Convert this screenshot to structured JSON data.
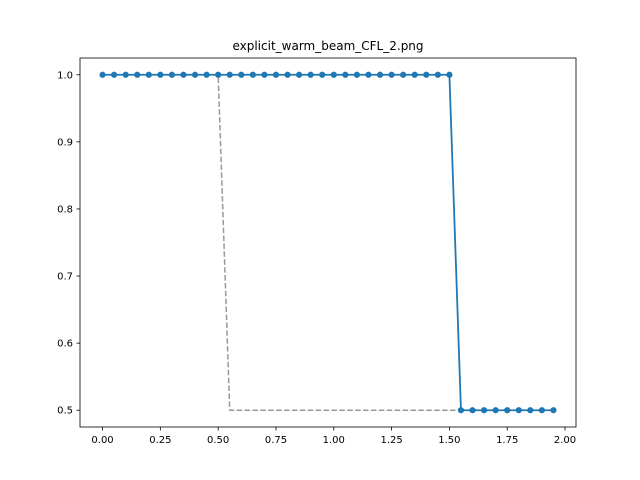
{
  "chart_data": {
    "type": "line",
    "title": "explicit_warm_beam_CFL_2.png",
    "xlabel": "",
    "ylabel": "",
    "xlim": [
      -0.0975,
      2.0475
    ],
    "ylim": [
      0.475,
      1.025
    ],
    "x_ticks": [
      "0.00",
      "0.25",
      "0.50",
      "0.75",
      "1.00",
      "1.25",
      "1.50",
      "1.75",
      "2.00"
    ],
    "y_ticks": [
      "0.5",
      "0.6",
      "0.7",
      "0.8",
      "0.9",
      "1.0"
    ],
    "x_tick_values": [
      0,
      0.25,
      0.5,
      0.75,
      1.0,
      1.25,
      1.5,
      1.75,
      2.0
    ],
    "y_tick_values": [
      0.5,
      0.6,
      0.7,
      0.8,
      0.9,
      1.0
    ],
    "grid": false,
    "series": [
      {
        "style": "dashed",
        "color": "#999999",
        "x": [
          0.0,
          0.05,
          0.1,
          0.15,
          0.2,
          0.25,
          0.3,
          0.35,
          0.4,
          0.45,
          0.5,
          0.55,
          0.6,
          0.65,
          0.7,
          0.75,
          0.8,
          0.85,
          0.9,
          0.95,
          1.0,
          1.05,
          1.1,
          1.15,
          1.2,
          1.25,
          1.3,
          1.35,
          1.4,
          1.45,
          1.5,
          1.55,
          1.6,
          1.65,
          1.7,
          1.75,
          1.8,
          1.85,
          1.9,
          1.95
        ],
        "y": [
          1,
          1,
          1,
          1,
          1,
          1,
          1,
          1,
          1,
          1,
          1,
          0.5,
          0.5,
          0.5,
          0.5,
          0.5,
          0.5,
          0.5,
          0.5,
          0.5,
          0.5,
          0.5,
          0.5,
          0.5,
          0.5,
          0.5,
          0.5,
          0.5,
          0.5,
          0.5,
          0.5,
          0.5,
          0.5,
          0.5,
          0.5,
          0.5,
          0.5,
          0.5,
          0.5,
          0.5
        ]
      },
      {
        "style": "solid-markers",
        "color": "#1f77b4",
        "x": [
          0.0,
          0.05,
          0.1,
          0.15,
          0.2,
          0.25,
          0.3,
          0.35,
          0.4,
          0.45,
          0.5,
          0.55,
          0.6,
          0.65,
          0.7,
          0.75,
          0.8,
          0.85,
          0.9,
          0.95,
          1.0,
          1.05,
          1.1,
          1.15,
          1.2,
          1.25,
          1.3,
          1.35,
          1.4,
          1.45,
          1.5,
          1.55,
          1.6,
          1.65,
          1.7,
          1.75,
          1.8,
          1.85,
          1.9,
          1.95
        ],
        "y": [
          1,
          1,
          1,
          1,
          1,
          1,
          1,
          1,
          1,
          1,
          1,
          1,
          1,
          1,
          1,
          1,
          1,
          1,
          1,
          1,
          1,
          1,
          1,
          1,
          1,
          1,
          1,
          1,
          1,
          1,
          1,
          0.5,
          0.5,
          0.5,
          0.5,
          0.5,
          0.5,
          0.5,
          0.5,
          0.5
        ]
      }
    ]
  }
}
